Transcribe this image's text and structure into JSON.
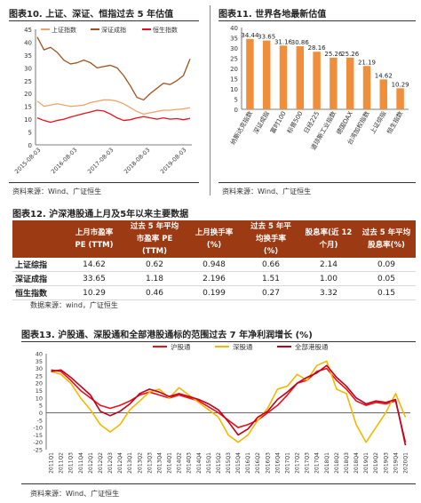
{
  "fig10": {
    "title": "图表10. 上证、深证、恒指过去 5 年估值",
    "source": "资料来源：Wind、广证恒生",
    "chart_data": {
      "type": "line",
      "x_ticks": [
        "2015-08-03",
        "2016-08-03",
        "2017-08-03",
        "2018-08-03",
        "2019-08-03"
      ],
      "ylim": [
        0,
        45
      ],
      "y_ticks": [
        0,
        5,
        10,
        15,
        20,
        25,
        30,
        35,
        40,
        45
      ],
      "series": [
        {
          "name": "上证指数",
          "color": "#f2a36b",
          "values": [
            17,
            15,
            15.5,
            16,
            15.5,
            15,
            15.2,
            15.5,
            16.5,
            17,
            17.5,
            17.5,
            17,
            16,
            14.5,
            13,
            12,
            12.5,
            13,
            13.5,
            13.5,
            13.8,
            14,
            14.5
          ]
        },
        {
          "name": "深证成指",
          "color": "#a0521e",
          "values": [
            42,
            37,
            38,
            36,
            33,
            31.5,
            32,
            33,
            32,
            30,
            30.5,
            31,
            30,
            27,
            23,
            18.5,
            17.5,
            20,
            22,
            24,
            23.5,
            25,
            27,
            33.5
          ]
        },
        {
          "name": "恒生指数",
          "color": "#e8101a",
          "values": [
            10.5,
            9.5,
            8.8,
            9.5,
            10,
            10.8,
            11.5,
            12.2,
            12.8,
            13.5,
            13.2,
            12,
            10.5,
            9.5,
            9.8,
            10.5,
            11,
            10.5,
            10,
            10.5,
            10,
            10.2,
            9.8,
            10.3
          ]
        }
      ]
    }
  },
  "fig11": {
    "title": "图表11. 世界各地最新估值",
    "source": "资料来源：Wind、广证恒生",
    "chart_data": {
      "type": "bar",
      "color": "#ef8f3c",
      "categories": [
        "纳斯达克指数",
        "深证成指",
        "富时100",
        "标普500",
        "日经225",
        "道琼斯工业指数",
        "德国DAX",
        "台湾加权指数",
        "上证综指",
        "恒生指数"
      ],
      "values": [
        34.44,
        33.65,
        31.16,
        30.86,
        28.16,
        25.26,
        25.26,
        21.19,
        14.62,
        10.29
      ],
      "data_labels": [
        "34.44",
        "33.65",
        "31.16",
        "30.86",
        "28.16",
        "25.26",
        "25.26",
        "21.19",
        "14.62",
        "10.29"
      ],
      "ylim": [
        0,
        40
      ],
      "y_ticks": [
        0,
        5,
        10,
        15,
        20,
        25,
        30,
        35,
        40
      ]
    }
  },
  "fig12": {
    "title": "图表12. 沪深港股通上月及5年以来主要数据",
    "source": "数据来源：wind，广证恒生",
    "headers": [
      "",
      "上月市盈率\nPE (TTM)",
      "过去 5 年平均\n市盈率 PE\n(TTM)",
      "上月换手率\n(%)",
      "过去 5 年平\n均换手率\n(%)",
      "股息率(近 12\n个月)",
      "过去 5 年平均\n股息率(%)"
    ],
    "rows": [
      [
        "上证综指",
        "14.62",
        "0.62",
        "0.948",
        "0.66",
        "2.14",
        "0.09"
      ],
      [
        "深证成指",
        "33.65",
        "1.18",
        "2.196",
        "1.51",
        "1.00",
        "0.05"
      ],
      [
        "恒生指数",
        "10.29",
        "0.46",
        "0.199",
        "0.27",
        "3.32",
        "0.15"
      ]
    ]
  },
  "fig13": {
    "title": "图表13. 沪股通、深股通和全部港股通标的范围过去 7 年净利润增长 (%)",
    "source": "资料来源：Wind、广证恒生",
    "chart_data": {
      "type": "line",
      "categories": [
        "2011Q1",
        "2011Q2",
        "2011Q3",
        "2011Q4",
        "2012Q1",
        "2012Q2",
        "2012Q3",
        "2012Q4",
        "2013Q1",
        "2013Q2",
        "2013Q3",
        "2013Q4",
        "2014Q1",
        "2014Q2",
        "2014Q3",
        "2014Q4",
        "2015Q1",
        "2015Q2",
        "2015Q3",
        "2015Q4",
        "2016Q1",
        "2016Q2",
        "2016Q3",
        "2016Q4",
        "2017Q1",
        "2017Q2",
        "2017Q3",
        "2017Q4",
        "2018Q1",
        "2018Q2",
        "2018Q3",
        "2018Q4",
        "2019Q1",
        "2019Q2",
        "2019Q3",
        "2019Q4",
        "2020Q1"
      ],
      "ylim": [
        -25,
        40
      ],
      "y_ticks": [
        -25,
        -20,
        -15,
        -10,
        -5,
        0,
        5,
        10,
        15,
        20,
        25,
        30,
        35,
        40
      ],
      "series": [
        {
          "name": "沪股通",
          "color": "#e8101a",
          "values": [
            29,
            28,
            22,
            15,
            10,
            5,
            3,
            5,
            8,
            12,
            14,
            12,
            10,
            12,
            10,
            8,
            4,
            0,
            -5,
            -10,
            -8,
            -5,
            0,
            5,
            12,
            20,
            22,
            28,
            30,
            22,
            16,
            8,
            5,
            7,
            6,
            8,
            -20
          ]
        },
        {
          "name": "深股通",
          "color": "#f5b800",
          "values": [
            28,
            26,
            20,
            10,
            2,
            -8,
            -13,
            -8,
            2,
            8,
            14,
            16,
            10,
            17,
            12,
            7,
            2,
            -3,
            -15,
            -20,
            -15,
            -5,
            3,
            16,
            18,
            26,
            22,
            32,
            35,
            16,
            13,
            -8,
            -20,
            -10,
            0,
            13,
            -3
          ]
        },
        {
          "name": "全部港股通",
          "color": "#c0001d",
          "values": [
            28,
            29,
            24,
            18,
            12,
            1,
            -2,
            1,
            6,
            13,
            16,
            14,
            11,
            13,
            11,
            9,
            6,
            2,
            -6,
            -15,
            -11,
            -3,
            1,
            9,
            14,
            20,
            24,
            27,
            32,
            24,
            18,
            10,
            6,
            8,
            7,
            9,
            -22
          ]
        }
      ]
    }
  }
}
